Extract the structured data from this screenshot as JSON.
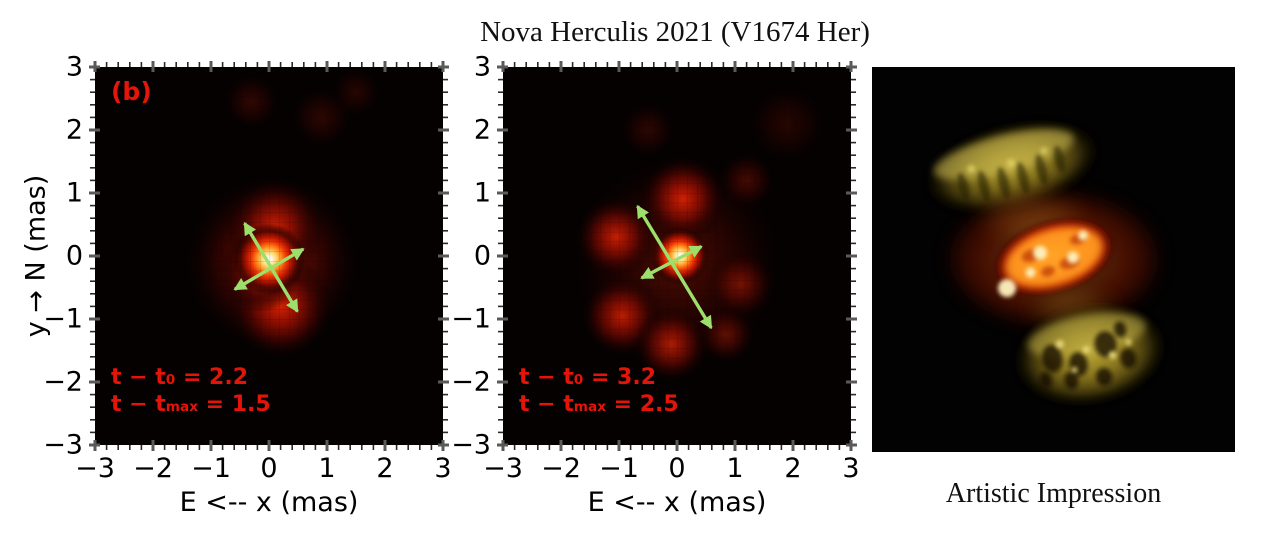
{
  "title": "Nova Herculis 2021 (V1674 Her)",
  "artistic": {
    "caption": "Artistic Impression"
  },
  "colors": {
    "annotation_red": "#e51408",
    "arrow_green": "#9ce06b",
    "plot_bg": "#050101",
    "figure_bg": "#ffffff",
    "lobe_olive": "#8d7a1f",
    "fire_orange": "#ff8e1e"
  },
  "chart_data": [
    {
      "type": "heatmap",
      "panel_label": "(b)",
      "colormap": "hot",
      "xlabel": "E <-- x (mas)",
      "ylabel": "y → N (mas)",
      "xlim": [
        -3,
        3
      ],
      "ylim": [
        -3,
        3
      ],
      "xticks": [
        "−3",
        "−2",
        "−1",
        "0",
        "1",
        "2",
        "3"
      ],
      "yticks": [
        "3",
        "2",
        "1",
        "0",
        "−1",
        "−2",
        "−3"
      ],
      "annotation_lines": [
        {
          "pre": "t − t",
          "sub": "0",
          "post": " = 2.2"
        },
        {
          "pre": "t − t",
          "sub": "max",
          "post": " = 1.5"
        }
      ],
      "epoch": {
        "t_minus_t0": 2.2,
        "t_minus_tmax": 1.5
      },
      "blobs": [
        {
          "x": 0.05,
          "y": -0.1,
          "r": 1.55,
          "kind": "lobe",
          "opacity": 0.55
        },
        {
          "x": 0.1,
          "y": 0.45,
          "r": 0.85,
          "kind": "lobe",
          "opacity": 0.85
        },
        {
          "x": 0.2,
          "y": -0.8,
          "r": 0.9,
          "kind": "lobe",
          "opacity": 0.9
        },
        {
          "x": -0.15,
          "y": -0.25,
          "r": 0.7,
          "kind": "lobe",
          "opacity": 0.8
        },
        {
          "x": 0.0,
          "y": -0.05,
          "r": 0.62,
          "kind": "core",
          "opacity": 1
        },
        {
          "x": -0.3,
          "y": 2.45,
          "r": 0.5,
          "kind": "lobe",
          "opacity": 0.2
        },
        {
          "x": 0.9,
          "y": 2.2,
          "r": 0.55,
          "kind": "lobe",
          "opacity": 0.18
        },
        {
          "x": 1.5,
          "y": 2.6,
          "r": 0.45,
          "kind": "lobe",
          "opacity": 0.15
        }
      ],
      "arrows": [
        {
          "x1": -0.42,
          "y1": 0.52,
          "x2": 0.49,
          "y2": -0.88
        },
        {
          "x1": 0.59,
          "y1": 0.11,
          "x2": -0.59,
          "y2": -0.53
        }
      ]
    },
    {
      "type": "heatmap",
      "colormap": "hot",
      "xlabel": "E <-- x (mas)",
      "xlim": [
        -3,
        3
      ],
      "ylim": [
        -3,
        3
      ],
      "xticks": [
        "−3",
        "−2",
        "−1",
        "0",
        "1",
        "2",
        "3"
      ],
      "yticks": [
        "3",
        "2",
        "1",
        "0",
        "−1",
        "−2",
        "−3"
      ],
      "annotation_lines": [
        {
          "pre": "t − t",
          "sub": "0",
          "post": " = 3.2"
        },
        {
          "pre": "t − t",
          "sub": "max",
          "post": " = 2.5"
        }
      ],
      "epoch": {
        "t_minus_t0": 3.2,
        "t_minus_tmax": 2.5
      },
      "blobs": [
        {
          "x": 0.0,
          "y": -0.1,
          "r": 1.9,
          "kind": "lobe",
          "opacity": 0.32
        },
        {
          "x": 0.1,
          "y": 0.9,
          "r": 0.75,
          "kind": "lobe",
          "opacity": 0.9
        },
        {
          "x": -1.05,
          "y": 0.3,
          "r": 0.7,
          "kind": "lobe",
          "opacity": 0.85
        },
        {
          "x": -0.95,
          "y": -0.95,
          "r": 0.7,
          "kind": "lobe",
          "opacity": 0.8
        },
        {
          "x": -0.1,
          "y": -1.4,
          "r": 0.65,
          "kind": "lobe",
          "opacity": 0.75
        },
        {
          "x": 1.1,
          "y": -0.45,
          "r": 0.6,
          "kind": "lobe",
          "opacity": 0.45
        },
        {
          "x": 0.85,
          "y": -1.25,
          "r": 0.5,
          "kind": "lobe",
          "opacity": 0.4
        },
        {
          "x": 1.2,
          "y": 1.2,
          "r": 0.5,
          "kind": "lobe",
          "opacity": 0.28
        },
        {
          "x": -0.5,
          "y": 2.0,
          "r": 0.5,
          "kind": "lobe",
          "opacity": 0.18
        },
        {
          "x": 1.9,
          "y": 2.1,
          "r": 0.7,
          "kind": "lobe",
          "opacity": 0.15
        },
        {
          "x": 0.05,
          "y": 0.0,
          "r": 0.5,
          "kind": "core",
          "opacity": 1
        }
      ],
      "arrows": [
        {
          "x1": -0.68,
          "y1": 0.79,
          "x2": 0.59,
          "y2": -1.14
        },
        {
          "x1": -0.61,
          "y1": -0.35,
          "x2": 0.42,
          "y2": 0.15
        }
      ]
    }
  ]
}
